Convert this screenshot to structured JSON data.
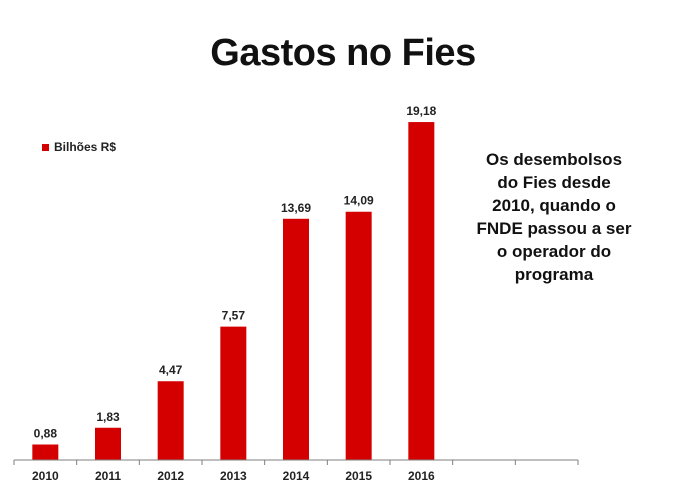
{
  "title": "Gastos no Fies",
  "note": "Os desembolsos do Fies desde 2010, quando o FNDE passou a ser o operador do programa",
  "colors": {
    "bar": "#d40000",
    "axis": "#7f7f7f",
    "text": "#222222"
  },
  "chart_data": {
    "type": "bar",
    "categories": [
      "2010",
      "2011",
      "2012",
      "2013",
      "2014",
      "2015",
      "2016",
      "",
      ""
    ],
    "series": [
      {
        "name": "Bilhões R$",
        "values": [
          0.88,
          1.83,
          4.47,
          7.57,
          13.69,
          14.09,
          19.18,
          null,
          null
        ]
      }
    ],
    "value_labels": [
      "0,88",
      "1,83",
      "4,47",
      "7,57",
      "13,69",
      "14,09",
      "19,18",
      "",
      ""
    ],
    "ylim": [
      0,
      21
    ],
    "grid": false,
    "legend": "top-left",
    "xlabel": "",
    "ylabel": ""
  }
}
